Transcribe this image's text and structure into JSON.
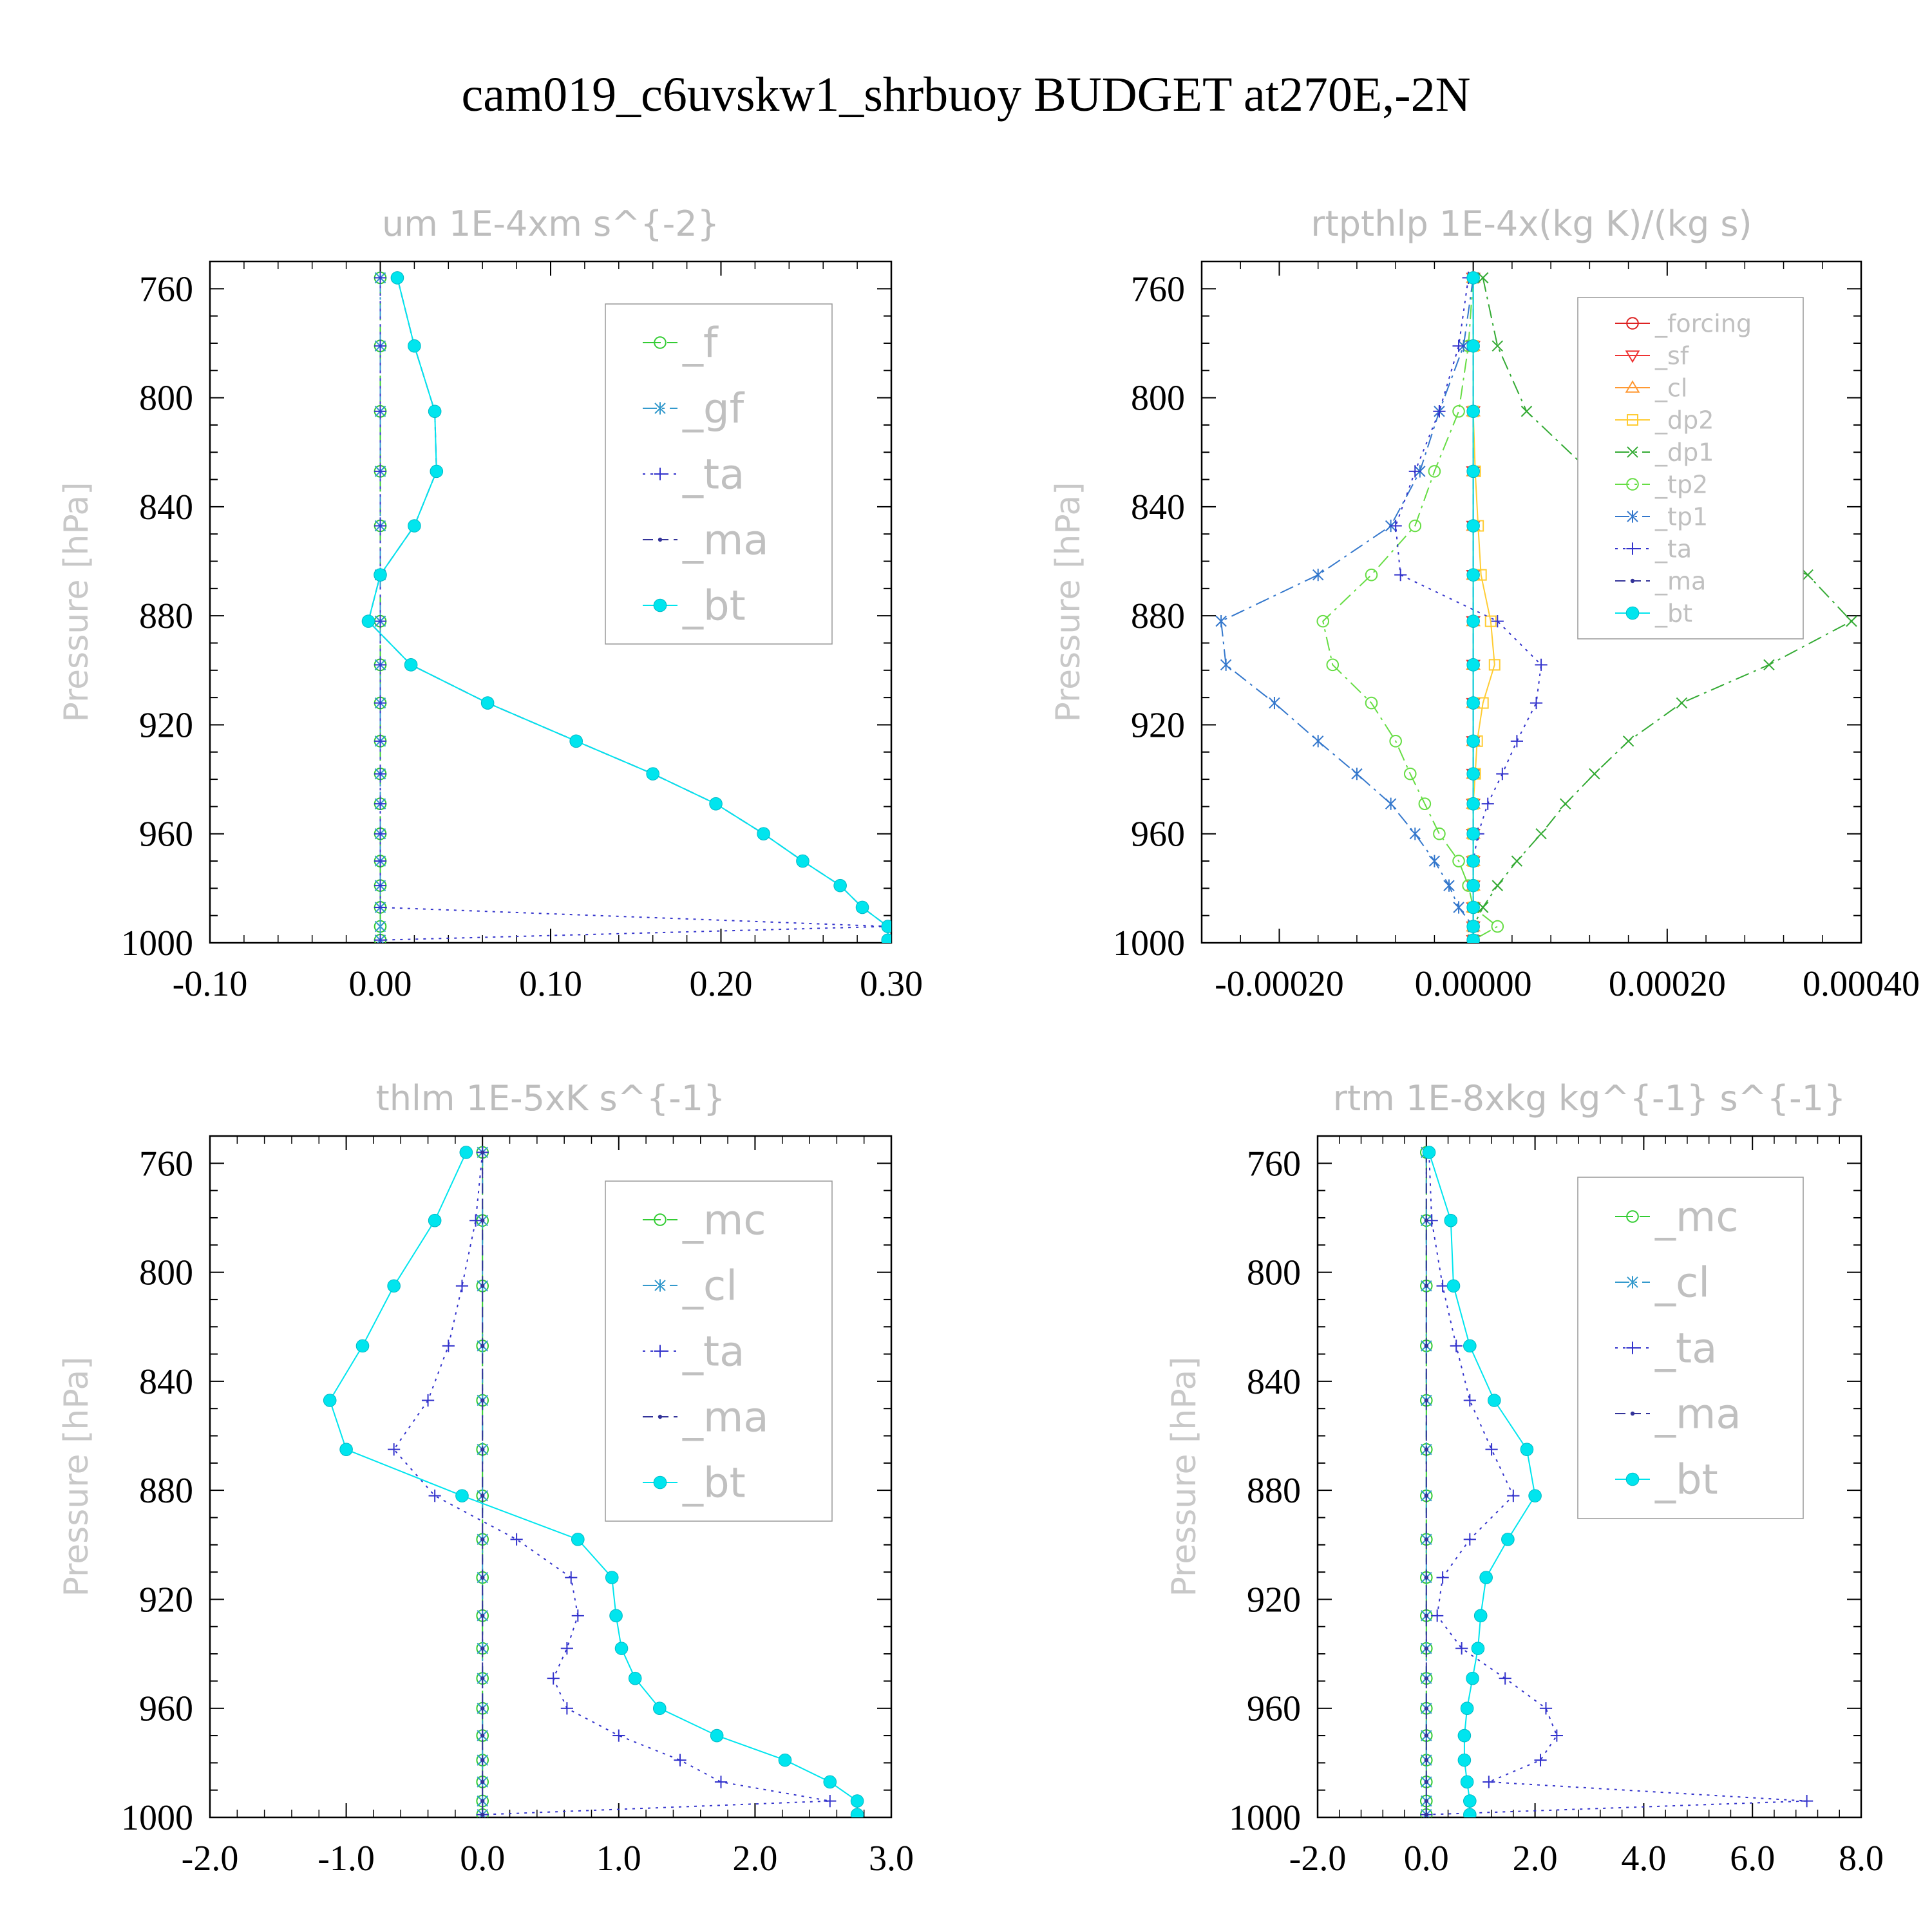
{
  "title": "cam019_c6uvskw1_shrbuoy  BUDGET at270E,-2N",
  "chart_data": [
    {
      "type": "line",
      "title": "um  1E-4xm s^{-2}",
      "ylabel": "Pressure [hPa]",
      "xlim": [
        -0.1,
        0.3
      ],
      "ylim": [
        1000,
        750
      ],
      "x_ticks": [
        "-0.10",
        "0.00",
        "0.10",
        "0.20",
        "0.30"
      ],
      "y_ticks": [
        "760",
        "800",
        "840",
        "880",
        "920",
        "960",
        "1000"
      ],
      "legend_pos": "top-right",
      "levels": [
        756,
        781,
        805,
        827,
        847,
        865,
        882,
        898,
        912,
        926,
        938,
        949,
        960,
        970,
        979,
        987,
        994,
        999
      ],
      "series": [
        {
          "name": "_f",
          "color": "#33cc33",
          "dash": "28,10",
          "marker": "circle",
          "values": [
            0,
            0,
            0,
            0,
            0,
            0,
            0,
            0,
            0,
            0,
            0,
            0,
            0,
            0,
            0,
            0,
            0,
            0
          ]
        },
        {
          "name": "_gf",
          "color": "#3399cc",
          "dash": "22,8,4,8",
          "marker": "star",
          "values": [
            0,
            0,
            0,
            0,
            0,
            0,
            0,
            0,
            0,
            0,
            0,
            0,
            0,
            0,
            0,
            0,
            0,
            0
          ]
        },
        {
          "name": "_ta",
          "color": "#3333cc",
          "dash": "4,8",
          "marker": "plus",
          "values": [
            0,
            0,
            0,
            0,
            0,
            0,
            0,
            0,
            0,
            0,
            0,
            0,
            0,
            0,
            0,
            0,
            0.298,
            0
          ]
        },
        {
          "name": "_ma",
          "color": "#333399",
          "dash": "16,8",
          "marker": "dot",
          "values": [
            0.01,
            0.02,
            0.032,
            0.033,
            0.02,
            0,
            -0.007,
            0.018,
            0.063,
            0.115,
            0.16,
            0.197,
            0.225,
            0.248,
            0.27,
            0.283,
            0.298,
            0.298
          ]
        },
        {
          "name": "_bt",
          "color": "#00e5ee",
          "dash": "",
          "marker": "filled-circle",
          "values": [
            0.01,
            0.02,
            0.032,
            0.033,
            0.02,
            0,
            -0.007,
            0.018,
            0.063,
            0.115,
            0.16,
            0.197,
            0.225,
            0.248,
            0.27,
            0.283,
            0.298,
            0.298
          ]
        }
      ]
    },
    {
      "type": "line",
      "title": "rtpthlp  1E-4x(kg K)/(kg s)",
      "ylabel": "Pressure [hPa]",
      "xlim": [
        -0.00028,
        0.0004
      ],
      "ylim": [
        1000,
        750
      ],
      "x_ticks": [
        "-0.00020",
        "0.00000",
        "0.00020",
        "0.00040"
      ],
      "y_ticks": [
        "760",
        "800",
        "840",
        "880",
        "920",
        "960",
        "1000"
      ],
      "legend_pos": "top-right",
      "levels": [
        756,
        781,
        805,
        827,
        847,
        865,
        882,
        898,
        912,
        926,
        938,
        949,
        960,
        970,
        979,
        987,
        994,
        999
      ],
      "series": [
        {
          "name": "_forcing",
          "color": "#dd2222",
          "dash": "",
          "marker": "circle",
          "values": [
            0,
            0,
            0,
            0,
            0,
            0,
            0,
            0,
            0,
            0,
            0,
            0,
            0,
            0,
            0,
            0,
            0,
            0
          ]
        },
        {
          "name": "_sf",
          "color": "#ee3333",
          "dash": "",
          "marker": "triangle-down",
          "values": [
            0,
            0,
            0,
            0,
            0,
            0,
            0,
            0,
            0,
            0,
            0,
            0,
            0,
            0,
            0,
            0,
            0,
            0
          ]
        },
        {
          "name": "_cl",
          "color": "#ff9933",
          "dash": "",
          "marker": "triangle-up",
          "values": [
            0,
            0,
            0,
            0,
            0,
            0,
            0,
            0,
            0,
            0,
            0,
            0,
            0,
            0,
            0,
            0,
            0,
            0
          ]
        },
        {
          "name": "_dp2",
          "color": "#ffcc33",
          "dash": "",
          "marker": "square",
          "values": [
            0,
            0,
            0,
            2e-06,
            5e-06,
            8e-06,
            1.8e-05,
            2.2e-05,
            1e-05,
            4e-06,
            2e-06,
            0,
            0,
            0,
            0,
            0,
            0,
            0
          ]
        },
        {
          "name": "_dp1",
          "color": "#33aa33",
          "dash": "22,8,4,8",
          "marker": "x",
          "values": [
            1e-05,
            2.5e-05,
            5.5e-05,
            0.00012,
            0.00022,
            0.000345,
            0.00039,
            0.000305,
            0.000215,
            0.00016,
            0.000125,
            9.5e-05,
            7e-05,
            4.5e-05,
            2.5e-05,
            1e-05,
            0,
            0
          ]
        },
        {
          "name": "_tp2",
          "color": "#66dd44",
          "dash": "22,8,4,8",
          "marker": "circle",
          "values": [
            0,
            -5e-06,
            -1.5e-05,
            -4e-05,
            -6e-05,
            -0.000105,
            -0.000155,
            -0.000145,
            -0.000105,
            -8e-05,
            -6.5e-05,
            -5e-05,
            -3.5e-05,
            -1.5e-05,
            -5e-06,
            0,
            2.5e-05,
            0
          ]
        },
        {
          "name": "_tp1",
          "color": "#3377cc",
          "dash": "22,8,4,8",
          "marker": "star",
          "values": [
            0,
            -1e-05,
            -3.5e-05,
            -5.5e-05,
            -8.5e-05,
            -0.00016,
            -0.00026,
            -0.000255,
            -0.000205,
            -0.00016,
            -0.00012,
            -8.5e-05,
            -6e-05,
            -4e-05,
            -2.5e-05,
            -1.5e-05,
            0,
            0
          ]
        },
        {
          "name": "_ta",
          "color": "#3333cc",
          "dash": "4,8",
          "marker": "plus",
          "values": [
            -5e-06,
            -1.5e-05,
            -3.5e-05,
            -6e-05,
            -8e-05,
            -7.5e-05,
            2.5e-05,
            7e-05,
            6.5e-05,
            4.5e-05,
            3e-05,
            1.5e-05,
            5e-06,
            0,
            0,
            0,
            0,
            0
          ]
        },
        {
          "name": "_ma",
          "color": "#333399",
          "dash": "16,8",
          "marker": "dot",
          "values": [
            0,
            0,
            0,
            0,
            0,
            0,
            0,
            0,
            0,
            0,
            0,
            0,
            0,
            0,
            0,
            0,
            0,
            0
          ]
        },
        {
          "name": "_bt",
          "color": "#00e5ee",
          "dash": "",
          "marker": "filled-circle",
          "values": [
            0,
            0,
            0,
            0,
            0,
            0,
            0,
            0,
            0,
            0,
            0,
            0,
            0,
            0,
            0,
            0,
            0,
            0
          ]
        }
      ]
    },
    {
      "type": "line",
      "title": "thlm  1E-5xK s^{-1}",
      "ylabel": "Pressure [hPa]",
      "xlim": [
        -2,
        3
      ],
      "ylim": [
        1000,
        750
      ],
      "x_ticks": [
        "-2.0",
        "-1.0",
        "0.0",
        "1.0",
        "2.0",
        "3.0"
      ],
      "y_ticks": [
        "760",
        "800",
        "840",
        "880",
        "920",
        "960",
        "1000"
      ],
      "legend_pos": "top-right",
      "levels": [
        756,
        781,
        805,
        827,
        847,
        865,
        882,
        898,
        912,
        926,
        938,
        949,
        960,
        970,
        979,
        987,
        994,
        999
      ],
      "series": [
        {
          "name": "_mc",
          "color": "#33cc33",
          "dash": "28,10",
          "marker": "circle",
          "values": [
            0,
            0,
            0,
            0,
            0,
            0,
            0,
            0,
            0,
            0,
            0,
            0,
            0,
            0,
            0,
            0,
            0,
            0
          ]
        },
        {
          "name": "_cl",
          "color": "#3399cc",
          "dash": "22,8,4,8",
          "marker": "star",
          "values": [
            0,
            0,
            0,
            0,
            0,
            0,
            0,
            0,
            0,
            0,
            0,
            0,
            0,
            0,
            0,
            0,
            0,
            0
          ]
        },
        {
          "name": "_ta",
          "color": "#3333cc",
          "dash": "4,8",
          "marker": "plus",
          "values": [
            0,
            -0.05,
            -0.15,
            -0.25,
            -0.4,
            -0.65,
            -0.35,
            0.25,
            0.65,
            0.7,
            0.62,
            0.52,
            0.62,
            1.0,
            1.45,
            1.75,
            2.55,
            0
          ]
        },
        {
          "name": "_ma",
          "color": "#333399",
          "dash": "16,8",
          "marker": "dot",
          "values": [
            0,
            0,
            0,
            0,
            0,
            0,
            0,
            0,
            0,
            0,
            0,
            0,
            0,
            0,
            0,
            0,
            0,
            0
          ]
        },
        {
          "name": "_bt",
          "color": "#00e5ee",
          "dash": "",
          "marker": "filled-circle",
          "values": [
            -0.12,
            -0.35,
            -0.65,
            -0.88,
            -1.12,
            -1.0,
            -0.15,
            0.7,
            0.95,
            0.98,
            1.02,
            1.12,
            1.3,
            1.72,
            2.22,
            2.55,
            2.75,
            2.75
          ]
        }
      ]
    },
    {
      "type": "line",
      "title": "rtm  1E-8xkg kg^{-1} s^{-1}",
      "ylabel": "Pressure [hPa]",
      "xlim": [
        -2,
        8
      ],
      "ylim": [
        1000,
        750
      ],
      "x_ticks": [
        "-2.0",
        "0.0",
        "2.0",
        "4.0",
        "6.0",
        "8.0"
      ],
      "y_ticks": [
        "760",
        "800",
        "840",
        "880",
        "920",
        "960",
        "1000"
      ],
      "legend_pos": "top-right",
      "levels": [
        756,
        781,
        805,
        827,
        847,
        865,
        882,
        898,
        912,
        926,
        938,
        949,
        960,
        970,
        979,
        987,
        994,
        999
      ],
      "series": [
        {
          "name": "_mc",
          "color": "#33cc33",
          "dash": "28,10",
          "marker": "circle",
          "values": [
            0,
            0,
            0,
            0,
            0,
            0,
            0,
            0,
            0,
            0,
            0,
            0,
            0,
            0,
            0,
            0,
            0,
            0
          ]
        },
        {
          "name": "_cl",
          "color": "#3399cc",
          "dash": "22,8,4,8",
          "marker": "star",
          "values": [
            0,
            0,
            0,
            0,
            0,
            0,
            0,
            0,
            0,
            0,
            0,
            0,
            0,
            0,
            0,
            0,
            0,
            0
          ]
        },
        {
          "name": "_ta",
          "color": "#3333cc",
          "dash": "4,8",
          "marker": "plus",
          "values": [
            0.05,
            0.1,
            0.3,
            0.55,
            0.8,
            1.2,
            1.6,
            0.8,
            0.3,
            0.2,
            0.65,
            1.45,
            2.2,
            2.4,
            2.1,
            1.15,
            7.0,
            0
          ]
        },
        {
          "name": "_ma",
          "color": "#333399",
          "dash": "16,8",
          "marker": "dot",
          "values": [
            0,
            0,
            0,
            0,
            0,
            0,
            0,
            0,
            0,
            0,
            0,
            0,
            0,
            0,
            0,
            0,
            0,
            0
          ]
        },
        {
          "name": "_bt",
          "color": "#00e5ee",
          "dash": "",
          "marker": "filled-circle",
          "values": [
            0.05,
            0.45,
            0.5,
            0.8,
            1.25,
            1.85,
            2.0,
            1.5,
            1.1,
            1.0,
            0.95,
            0.85,
            0.75,
            0.7,
            0.7,
            0.75,
            0.8,
            0.8
          ]
        }
      ]
    }
  ]
}
